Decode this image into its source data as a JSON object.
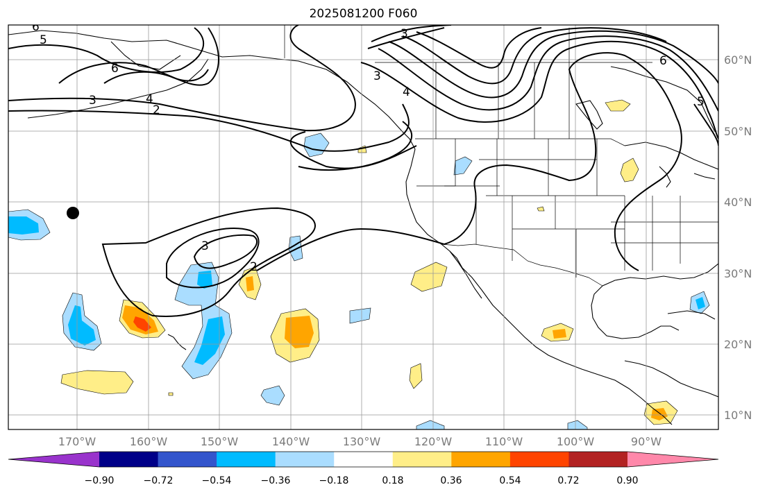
{
  "title": "2025081200 F060",
  "latitude_labels": [
    "60°N",
    "50°N",
    "40°N",
    "30°N",
    "20°N",
    "10°N"
  ],
  "longitude_labels": [
    "170°W",
    "160°W",
    "150°W",
    "140°W",
    "130°W",
    "120°W",
    "110°W",
    "100°W",
    "90°W"
  ],
  "contour_labels": [
    "6",
    "5",
    "6",
    "3",
    "4",
    "2",
    "3",
    "3",
    "4",
    "6",
    "5",
    "3",
    "2"
  ],
  "colorbar": {
    "tick_labels": [
      "−0.90",
      "−0.72",
      "−0.54",
      "−0.36",
      "−0.18",
      "0.18",
      "0.36",
      "0.54",
      "0.72",
      "0.90"
    ],
    "colors": [
      "#9933cc",
      "#000088",
      "#3355cc",
      "#00bbff",
      "#aaddff",
      "#ffffff",
      "#ffee88",
      "#ffa500",
      "#ff4400",
      "#b22222",
      "#ff88aa"
    ]
  },
  "marker": {
    "name": "point",
    "color": "#000000"
  }
}
